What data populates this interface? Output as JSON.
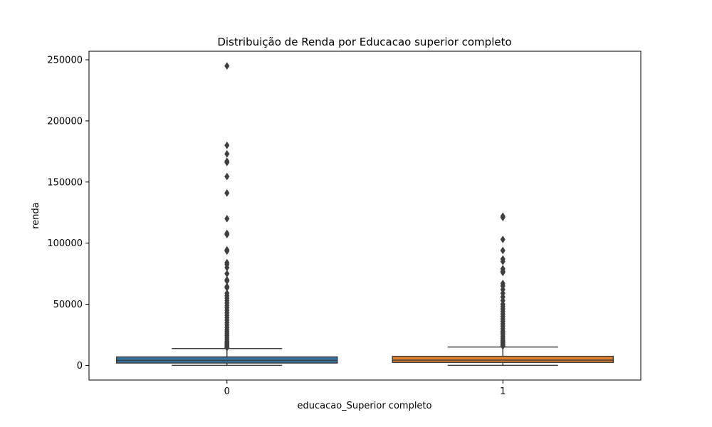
{
  "chart_data": {
    "type": "boxplot",
    "title": "Distribuição de Renda por Educacao superior completo",
    "xlabel": "educacao_Superior completo",
    "ylabel": "renda",
    "ylim": [
      -12000,
      257000
    ],
    "yticks": [
      0,
      50000,
      100000,
      150000,
      200000,
      250000
    ],
    "grid": false,
    "categories": [
      "0",
      "1"
    ],
    "boxes": [
      {
        "category": "0",
        "color": "#3274a1",
        "whisker_low": 0,
        "q1": 1900,
        "median": 4000,
        "q3": 6900,
        "whisker_high": 13800,
        "outliers": [
          245000,
          180000,
          173000,
          167000,
          166000,
          154500,
          141000,
          120000,
          108000,
          107000,
          94500,
          93500,
          84000,
          82500,
          80000,
          75000,
          70000,
          69000,
          64500,
          63500,
          59000,
          57000,
          55000,
          53000,
          51000,
          49000,
          47000,
          45000,
          43000,
          41000,
          39000,
          37000,
          35000,
          33000,
          31000,
          29000,
          27500,
          26000,
          24500,
          23000,
          21500,
          20000,
          19000,
          18000,
          17000,
          16000,
          15000,
          14500
        ]
      },
      {
        "category": "1",
        "color": "#e1812c",
        "whisker_low": 0,
        "q1": 2400,
        "median": 4300,
        "q3": 7400,
        "whisker_high": 15000,
        "outliers": [
          122000,
          121000,
          103000,
          94000,
          87000,
          85000,
          79000,
          77000,
          76000,
          67000,
          65000,
          62000,
          59000,
          56000,
          53000,
          50000,
          48000,
          46000,
          44000,
          42000,
          40000,
          38000,
          36000,
          34000,
          32000,
          30000,
          28000,
          26500,
          25000,
          23500,
          22000,
          20500,
          19500,
          18500,
          17500,
          16500,
          15800
        ]
      }
    ]
  }
}
